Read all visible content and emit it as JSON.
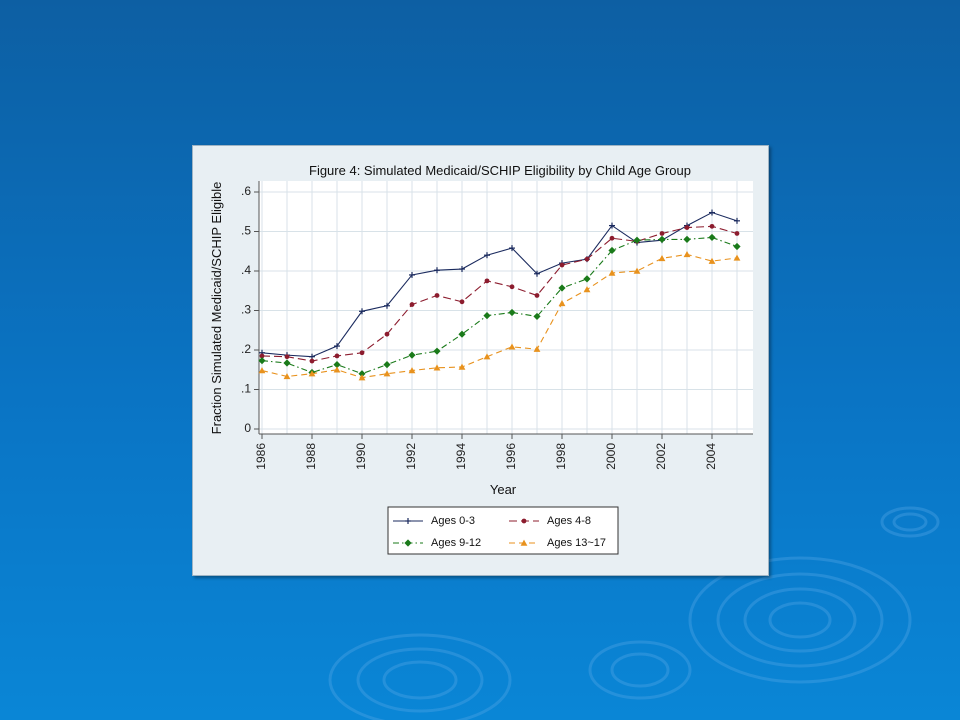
{
  "chart_data": {
    "type": "line",
    "title": "Figure 4: Simulated Medicaid/SCHIP Eligibility by Child Age Group",
    "xlabel": "Year",
    "ylabel": "Fraction Simulated Medicaid/SCHIP Eligible",
    "x": [
      1986,
      1987,
      1988,
      1989,
      1990,
      1991,
      1992,
      1993,
      1994,
      1995,
      1996,
      1997,
      1998,
      1999,
      2000,
      2001,
      2002,
      2003,
      2004,
      2005
    ],
    "xticks": [
      "1986",
      "1988",
      "1990",
      "1992",
      "1994",
      "1996",
      "1998",
      "2000",
      "2002",
      "2004"
    ],
    "yticks": [
      "0",
      ".1",
      ".2",
      ".3",
      ".4",
      ".5",
      ".6"
    ],
    "xlim": [
      1986,
      2005
    ],
    "ylim": [
      0,
      0.6
    ],
    "grid": true,
    "legend_position": "bottom",
    "series": [
      {
        "name": "Ages 0-3",
        "color": "#1a2a5e",
        "dash": "",
        "marker": "plus",
        "values": [
          0.193,
          0.187,
          0.183,
          0.21,
          0.298,
          0.312,
          0.39,
          0.402,
          0.405,
          0.44,
          0.458,
          0.393,
          0.42,
          0.43,
          0.515,
          0.472,
          0.478,
          0.515,
          0.548,
          0.527
        ]
      },
      {
        "name": "Ages 4-8",
        "color": "#8c1c2e",
        "dash": "8 4",
        "marker": "circle",
        "values": [
          0.185,
          0.183,
          0.172,
          0.185,
          0.193,
          0.24,
          0.315,
          0.338,
          0.322,
          0.375,
          0.36,
          0.338,
          0.415,
          0.43,
          0.483,
          0.475,
          0.495,
          0.51,
          0.513,
          0.495
        ]
      },
      {
        "name": "Ages 9-12",
        "color": "#1a7a1a",
        "dash": "6 3 1.5 3",
        "marker": "diamond",
        "values": [
          0.173,
          0.167,
          0.143,
          0.163,
          0.14,
          0.163,
          0.187,
          0.197,
          0.24,
          0.287,
          0.295,
          0.285,
          0.357,
          0.38,
          0.452,
          0.478,
          0.48,
          0.48,
          0.485,
          0.462
        ]
      },
      {
        "name": "Ages 13~17",
        "color": "#e8921e",
        "dash": "6 4",
        "marker": "triangle",
        "values": [
          0.148,
          0.133,
          0.14,
          0.15,
          0.13,
          0.14,
          0.148,
          0.155,
          0.157,
          0.183,
          0.208,
          0.202,
          0.318,
          0.353,
          0.395,
          0.4,
          0.432,
          0.442,
          0.425,
          0.433
        ]
      }
    ]
  }
}
